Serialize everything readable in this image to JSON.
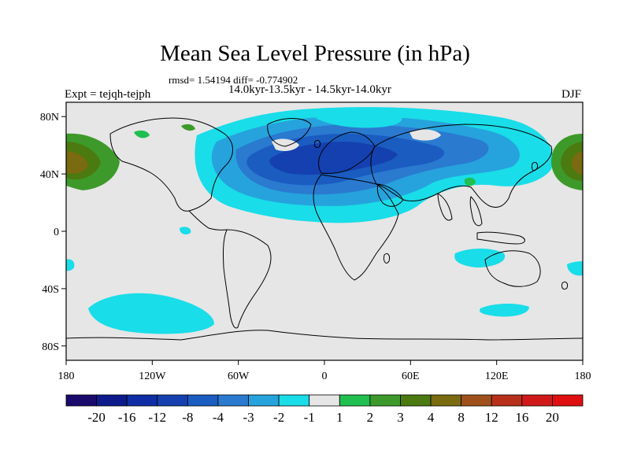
{
  "title": "Mean Sea Level Pressure (in hPa)",
  "stats": "rmsd= 1.54194 diff= -0.774902",
  "period": "14.0kyr-13.5kyr - 14.5kyr-14.0kyr",
  "experiment": "Expt = tejqh-tejph",
  "season": "DJF",
  "axes": {
    "x_ticks": [
      {
        "lon": -180,
        "label": "180"
      },
      {
        "lon": -120,
        "label": "120W"
      },
      {
        "lon": -60,
        "label": "60W"
      },
      {
        "lon": 0,
        "label": "0"
      },
      {
        "lon": 60,
        "label": "60E"
      },
      {
        "lon": 120,
        "label": "120E"
      },
      {
        "lon": 180,
        "label": "180"
      }
    ],
    "y_ticks": [
      {
        "lat": 80,
        "label": "80N"
      },
      {
        "lat": 40,
        "label": "40N"
      },
      {
        "lat": 0,
        "label": "0"
      },
      {
        "lat": -40,
        "label": "40S"
      },
      {
        "lat": -80,
        "label": "80S"
      }
    ],
    "lon_range": [
      -180,
      180
    ],
    "lat_range": [
      -90,
      90
    ]
  },
  "colorbar": {
    "labels": [
      "-20",
      "-16",
      "-12",
      "-8",
      "-4",
      "-3",
      "-2",
      "-1",
      "1",
      "2",
      "3",
      "4",
      "8",
      "12",
      "16",
      "20"
    ],
    "colors": [
      "#1a0a6b",
      "#0d1a8c",
      "#0f2ea6",
      "#1440b0",
      "#1a5cc0",
      "#2a7ad0",
      "#26a3dd",
      "#19dde8",
      "#e6e6e6",
      "#1fbf50",
      "#3d9a2a",
      "#4a7a10",
      "#7a6a10",
      "#a0501a",
      "#b8301a",
      "#d01a1a",
      "#e01010"
    ]
  },
  "chart_data": {
    "type": "heatmap",
    "title": "Mean Sea Level Pressure (in hPa)",
    "variable": "mean sea level pressure difference",
    "units": "hPa",
    "x": "longitude",
    "y": "latitude",
    "xlim": [
      -180,
      180
    ],
    "ylim": [
      -90,
      90
    ],
    "contour_levels": [
      -20,
      -16,
      -12,
      -8,
      -4,
      -3,
      -2,
      -1,
      1,
      2,
      3,
      4,
      8,
      12,
      16,
      20
    ],
    "regions": [
      {
        "name": "North Atlantic / Eurasia low anomaly",
        "lon": [
          -90,
          80
        ],
        "lat": [
          10,
          85
        ],
        "value_range": [
          -8,
          -1
        ]
      },
      {
        "name": "North Atlantic core",
        "lon": [
          -60,
          20
        ],
        "lat": [
          30,
          65
        ],
        "value_range": [
          -8,
          -4
        ]
      },
      {
        "name": "North Pacific dateline high anomaly (west)",
        "lon": [
          -180,
          -150
        ],
        "lat": [
          30,
          70
        ],
        "value_range": [
          1,
          4
        ]
      },
      {
        "name": "North Pacific dateline high anomaly (east)",
        "lon": [
          150,
          180
        ],
        "lat": [
          30,
          70
        ],
        "value_range": [
          1,
          4
        ]
      },
      {
        "name": "South Pacific low anomaly",
        "lon": [
          -165,
          -95
        ],
        "lat": [
          -65,
          -45
        ],
        "value_range": [
          -2,
          -1
        ]
      },
      {
        "name": "Indian Ocean low anomaly",
        "lon": [
          55,
          95
        ],
        "lat": [
          -25,
          -10
        ],
        "value_range": [
          -2,
          -1
        ]
      },
      {
        "name": "Southern Indian Ocean low anomaly",
        "lon": [
          100,
          145
        ],
        "lat": [
          -60,
          -50
        ],
        "value_range": [
          -2,
          -1
        ]
      }
    ]
  }
}
